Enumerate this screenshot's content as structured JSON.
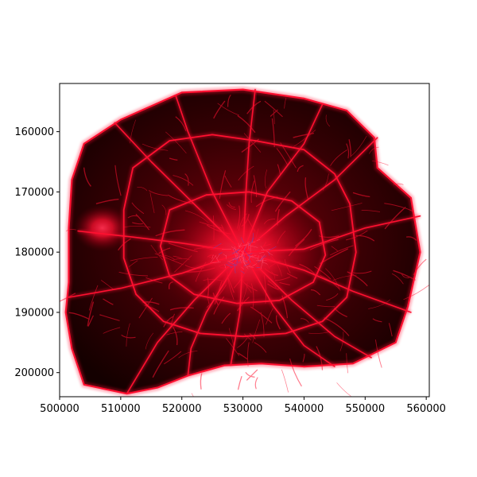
{
  "chart_data": {
    "type": "map",
    "title": "",
    "xlabel": "",
    "ylabel": "",
    "xlim": [
      500000,
      560500
    ],
    "ylim": [
      152000,
      204000
    ],
    "y_inverted": true,
    "grid": false,
    "legend": "none",
    "x_ticks": [
      500000,
      510000,
      520000,
      530000,
      540000,
      550000,
      560000
    ],
    "y_ticks": [
      160000,
      170000,
      180000,
      190000,
      200000
    ],
    "x_tick_labels": [
      "500000",
      "510000",
      "520000",
      "530000",
      "540000",
      "550000",
      "560000"
    ],
    "y_tick_labels": [
      "160000",
      "170000",
      "180000",
      "190000",
      "200000"
    ],
    "colors": {
      "background": "#ffffff",
      "map_dark": "#1a0000",
      "map_mid": "#5a0006",
      "road": "#ff1030",
      "center_glow": "#ff2040",
      "center_detail": "#5a4cc8"
    },
    "ring_roads": [
      {
        "points": [
          [
            510000,
            158000
          ],
          [
            520000,
            153500
          ],
          [
            530000,
            153000
          ],
          [
            540000,
            154500
          ],
          [
            547000,
            156500
          ],
          [
            551500,
            161000
          ],
          [
            552000,
            166000
          ],
          [
            557500,
            171000
          ],
          [
            559000,
            180000
          ],
          [
            557000,
            189000
          ],
          [
            555000,
            195000
          ],
          [
            548000,
            198500
          ],
          [
            540000,
            199000
          ],
          [
            533000,
            198500
          ],
          [
            527000,
            198800
          ],
          [
            521000,
            200500
          ],
          [
            516000,
            202500
          ],
          [
            511000,
            203500
          ],
          [
            504000,
            202000
          ],
          [
            502000,
            196000
          ],
          [
            501000,
            190000
          ],
          [
            501500,
            185000
          ],
          [
            501500,
            176000
          ],
          [
            502000,
            168000
          ],
          [
            504000,
            162000
          ],
          [
            510000,
            158000
          ]
        ]
      },
      {
        "points": [
          [
            512000,
            166000
          ],
          [
            518000,
            161500
          ],
          [
            525000,
            160500
          ],
          [
            532000,
            161500
          ],
          [
            540000,
            163000
          ],
          [
            545000,
            167000
          ],
          [
            547500,
            172000
          ],
          [
            548500,
            180000
          ],
          [
            547000,
            187500
          ],
          [
            543000,
            191500
          ],
          [
            537000,
            193500
          ],
          [
            530000,
            194000
          ],
          [
            523000,
            193500
          ],
          [
            517000,
            191500
          ],
          [
            512500,
            187000
          ],
          [
            510500,
            181000
          ],
          [
            510500,
            173000
          ],
          [
            512000,
            166000
          ]
        ]
      },
      {
        "points": [
          [
            518000,
            173000
          ],
          [
            524000,
            170500
          ],
          [
            531000,
            170000
          ],
          [
            538000,
            171500
          ],
          [
            542500,
            175000
          ],
          [
            543500,
            180500
          ],
          [
            541500,
            185000
          ],
          [
            536000,
            188000
          ],
          [
            529000,
            188500
          ],
          [
            522000,
            187000
          ],
          [
            518000,
            184000
          ],
          [
            516500,
            179000
          ],
          [
            518000,
            173000
          ]
        ]
      }
    ],
    "radial_roads": [
      {
        "points": [
          [
            530000,
            180000
          ],
          [
            530500,
            170000
          ],
          [
            531000,
            162000
          ],
          [
            532000,
            153000
          ]
        ]
      },
      {
        "points": [
          [
            530000,
            180000
          ],
          [
            537000,
            174000
          ],
          [
            545000,
            168000
          ],
          [
            552000,
            161000
          ]
        ]
      },
      {
        "points": [
          [
            530000,
            180000
          ],
          [
            540000,
            179500
          ],
          [
            550000,
            176000
          ],
          [
            559000,
            174000
          ]
        ]
      },
      {
        "points": [
          [
            530000,
            180000
          ],
          [
            540000,
            183000
          ],
          [
            548000,
            186500
          ],
          [
            557500,
            190000
          ]
        ]
      },
      {
        "points": [
          [
            530000,
            180000
          ],
          [
            535000,
            189000
          ],
          [
            540000,
            195500
          ],
          [
            545000,
            199000
          ]
        ]
      },
      {
        "points": [
          [
            530000,
            180000
          ],
          [
            529500,
            190000
          ],
          [
            528000,
            198800
          ]
        ]
      },
      {
        "points": [
          [
            530000,
            180000
          ],
          [
            522000,
            188000
          ],
          [
            516000,
            195000
          ],
          [
            511000,
            203500
          ]
        ]
      },
      {
        "points": [
          [
            530000,
            180000
          ],
          [
            520000,
            183500
          ],
          [
            510000,
            186000
          ],
          [
            501500,
            187500
          ]
        ]
      },
      {
        "points": [
          [
            530000,
            180000
          ],
          [
            520000,
            178500
          ],
          [
            512000,
            177500
          ],
          [
            503000,
            176500
          ]
        ]
      },
      {
        "points": [
          [
            530000,
            180000
          ],
          [
            522000,
            172000
          ],
          [
            515000,
            165000
          ],
          [
            509000,
            158500
          ]
        ]
      },
      {
        "points": [
          [
            530000,
            180000
          ],
          [
            525000,
            170000
          ],
          [
            521000,
            160000
          ],
          [
            519000,
            154000
          ]
        ]
      },
      {
        "points": [
          [
            530000,
            180000
          ],
          [
            538000,
            188000
          ],
          [
            545000,
            194000
          ],
          [
            551000,
            197500
          ]
        ]
      },
      {
        "points": [
          [
            530000,
            180000
          ],
          [
            534000,
            170000
          ],
          [
            540000,
            162000
          ],
          [
            543000,
            155500
          ]
        ]
      },
      {
        "points": [
          [
            530000,
            180000
          ],
          [
            524000,
            190000
          ],
          [
            521500,
            196000
          ],
          [
            521000,
            200500
          ]
        ]
      }
    ],
    "hotspots": [
      {
        "x": 507000,
        "y": 176000,
        "r": 1500
      },
      {
        "x": 530000,
        "y": 180500,
        "r": 4500
      }
    ]
  }
}
